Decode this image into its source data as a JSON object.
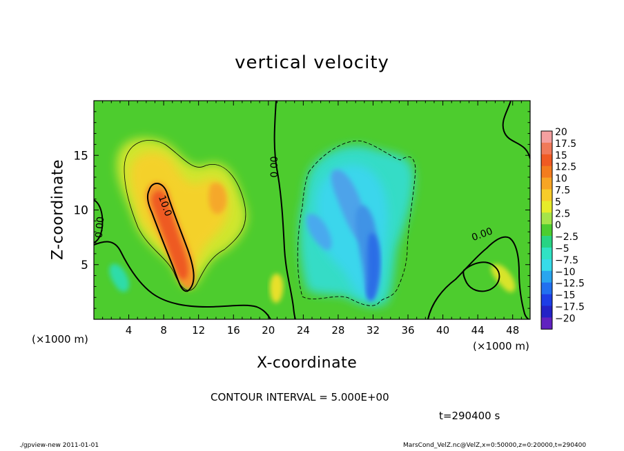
{
  "chart_data": {
    "type": "heatmap",
    "title": "vertical velocity",
    "xlabel": "X-coordinate",
    "ylabel": "Z-coordinate",
    "x_unit_label": "(×1000 m)",
    "xlim": [
      0,
      50
    ],
    "ylim": [
      0,
      20
    ],
    "x_ticks": [
      4,
      8,
      12,
      16,
      20,
      24,
      28,
      32,
      36,
      40,
      44,
      48
    ],
    "y_ticks": [
      5,
      10,
      15
    ],
    "colorbar": {
      "labels": [
        "20",
        "17.5",
        "15",
        "12.5",
        "10",
        "7.5",
        "5",
        "2.5",
        "0",
        "−2.5",
        "−5",
        "−7.5",
        "−10",
        "−12.5",
        "−15",
        "−17.5",
        "−20"
      ],
      "colors": [
        "#f4a0a0",
        "#f07a5a",
        "#f05a23",
        "#f47c1e",
        "#f8a524",
        "#f8cc2a",
        "#e6ec2a",
        "#a5e44a",
        "#4ccd30",
        "#28d484",
        "#30e3c4",
        "#37dbe9",
        "#29a5ef",
        "#2170f0",
        "#1d3ee6",
        "#2322c6",
        "#6122c0"
      ]
    },
    "contour_labels": [
      "10.0",
      "0.00",
      "0.00",
      "0.00"
    ],
    "contour_interval": "CONTOUR INTERVAL = 5.000E+00",
    "time": "t=290400 s"
  },
  "footer": {
    "left": "./gpview-new   2011-01-01",
    "right": "MarsCond_VelZ.nc@VelZ,x=0:50000,z=0:20000,t=290400"
  }
}
